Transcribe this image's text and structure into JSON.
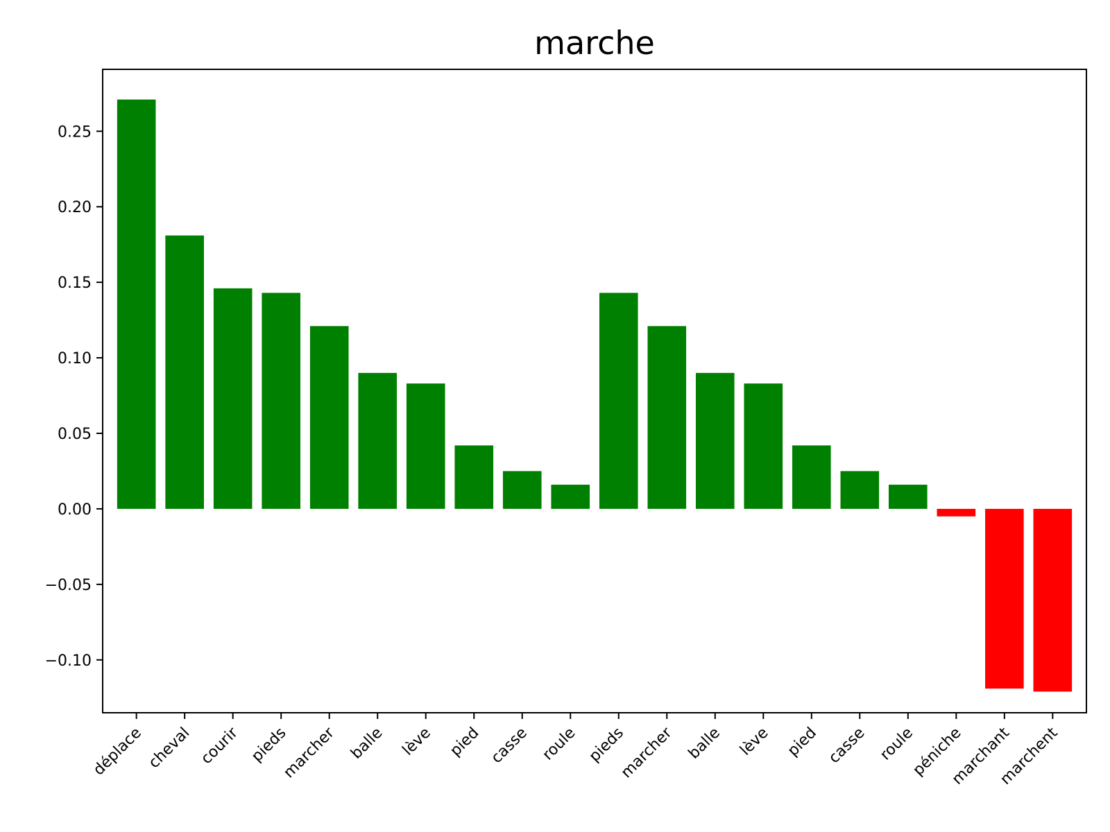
{
  "chart_data": {
    "type": "bar",
    "title": "marche",
    "xlabel": "",
    "ylabel": "",
    "categories": [
      "déplace",
      "cheval",
      "courir",
      "pieds",
      "marcher",
      "balle",
      "lève",
      "pied",
      "casse",
      "roule",
      "pieds",
      "marcher",
      "balle",
      "lève",
      "pied",
      "casse",
      "roule",
      "péniche",
      "marchant",
      "marchent"
    ],
    "values": [
      0.271,
      0.181,
      0.146,
      0.143,
      0.121,
      0.09,
      0.083,
      0.042,
      0.025,
      0.016,
      0.143,
      0.121,
      0.09,
      0.083,
      0.042,
      0.025,
      0.016,
      -0.005,
      -0.119,
      -0.121
    ],
    "ylim": [
      -0.135,
      0.291
    ],
    "yticks": [
      -0.1,
      -0.05,
      0.0,
      0.05,
      0.1,
      0.15,
      0.2,
      0.25
    ],
    "ytick_labels": [
      "−0.10",
      "−0.05",
      "0.00",
      "0.05",
      "0.10",
      "0.15",
      "0.20",
      "0.25"
    ],
    "colors": {
      "positive": "#008000",
      "negative": "#ff0000"
    },
    "grid": false,
    "legend": "none"
  }
}
